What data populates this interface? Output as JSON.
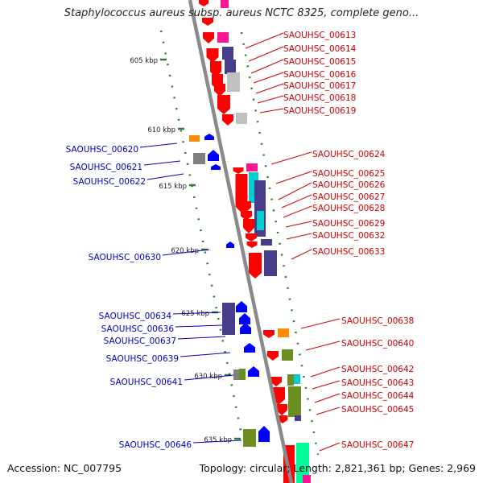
{
  "header": {
    "title": "Staphylococcus aureus subsp. aureus NCTC 8325, complete geno..."
  },
  "footer": {
    "accession": "Accession: NC_007795",
    "summary": "Topology: circular; Length: 2,821,361 bp; Genes: 2,969"
  },
  "colors": {
    "backbone": "#8a8a8a",
    "tick": "#2e7d2e",
    "right_label": "#cc0000",
    "left_label": "#0000bb",
    "gene_red": "#ff0000",
    "gene_blue": "#0000ff",
    "gene_navy": "#483d8b",
    "gene_magenta": "#ff1493",
    "gene_cyan": "#00ced1",
    "gene_gray": "#808080",
    "gene_silver": "#c0c0c0",
    "gene_orange": "#ff8c00",
    "gene_olive": "#6b8e23",
    "gene_teal": "#00fa9a"
  },
  "scale": {
    "unit": "kbp",
    "ticks": [
      "605 kbp",
      "610 kbp",
      "615 kbp",
      "620 kbp",
      "625 kbp",
      "630 kbp",
      "635 kbp"
    ]
  },
  "genes_right": [
    "SAOUHSC_00613",
    "SAOUHSC_00614",
    "SAOUHSC_00615",
    "SAOUHSC_00616",
    "SAOUHSC_00617",
    "SAOUHSC_00618",
    "SAOUHSC_00619",
    "SAOUHSC_00624",
    "SAOUHSC_00625",
    "SAOUHSC_00626",
    "SAOUHSC_00627",
    "SAOUHSC_00628",
    "SAOUHSC_00629",
    "SAOUHSC_00632",
    "SAOUHSC_00633",
    "SAOUHSC_00638",
    "SAOUHSC_00640",
    "SAOUHSC_00642",
    "SAOUHSC_00643",
    "SAOUHSC_00644",
    "SAOUHSC_00645",
    "SAOUHSC_00647"
  ],
  "genes_left": [
    "SAOUHSC_00620",
    "SAOUHSC_00621",
    "SAOUHSC_00622",
    "SAOUHSC_00630",
    "SAOUHSC_00634",
    "SAOUHSC_00636",
    "SAOUHSC_00637",
    "SAOUHSC_00639",
    "SAOUHSC_00641",
    "SAOUHSC_00646"
  ]
}
